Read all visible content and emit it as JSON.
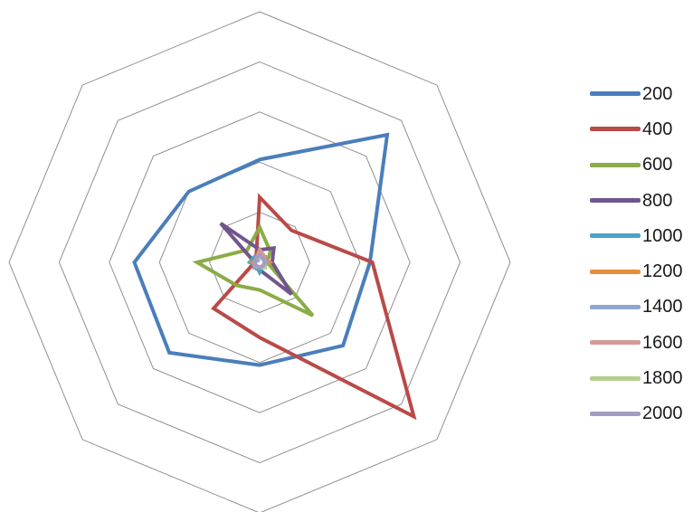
{
  "chart_data": {
    "type": "radar",
    "axes_count": 8,
    "value_range": [
      0,
      100
    ],
    "ring_step": 20,
    "grid": true,
    "grid_color": "#909090",
    "axis_labels_shown": false,
    "tick_labels_shown": false,
    "legend_position": "right",
    "series": [
      {
        "name": "200",
        "color": "#4a7ebb",
        "values": [
          41,
          72,
          44,
          47,
          41,
          51,
          50,
          40
        ]
      },
      {
        "name": "400",
        "color": "#b94a48",
        "values": [
          26,
          18,
          45,
          87,
          30,
          26,
          2,
          2
        ]
      },
      {
        "name": "600",
        "color": "#8bac46",
        "values": [
          14,
          6,
          3,
          30,
          11,
          13,
          25,
          7
        ]
      },
      {
        "name": "800",
        "color": "#71568e",
        "values": [
          5,
          8,
          5,
          18,
          3,
          3,
          2,
          22
        ]
      },
      {
        "name": "1000",
        "color": "#4aa4c2",
        "values": [
          2,
          3,
          2,
          2,
          4,
          2,
          4,
          3
        ]
      },
      {
        "name": "1200",
        "color": "#e88c3a",
        "values": [
          3,
          2,
          4,
          2,
          2,
          2,
          3,
          1
        ]
      },
      {
        "name": "1400",
        "color": "#8fa6d3",
        "values": [
          2,
          2,
          3,
          2,
          2,
          3,
          2,
          1
        ]
      },
      {
        "name": "1600",
        "color": "#d49a96",
        "values": [
          5,
          3,
          2,
          2,
          2,
          2,
          2,
          2
        ]
      },
      {
        "name": "1800",
        "color": "#b5cf8d",
        "values": [
          2,
          2,
          2,
          3,
          2,
          2,
          2,
          2
        ]
      },
      {
        "name": "2000",
        "color": "#a59cc2",
        "values": [
          3,
          2,
          2,
          2,
          2,
          2,
          2,
          2
        ]
      }
    ]
  }
}
